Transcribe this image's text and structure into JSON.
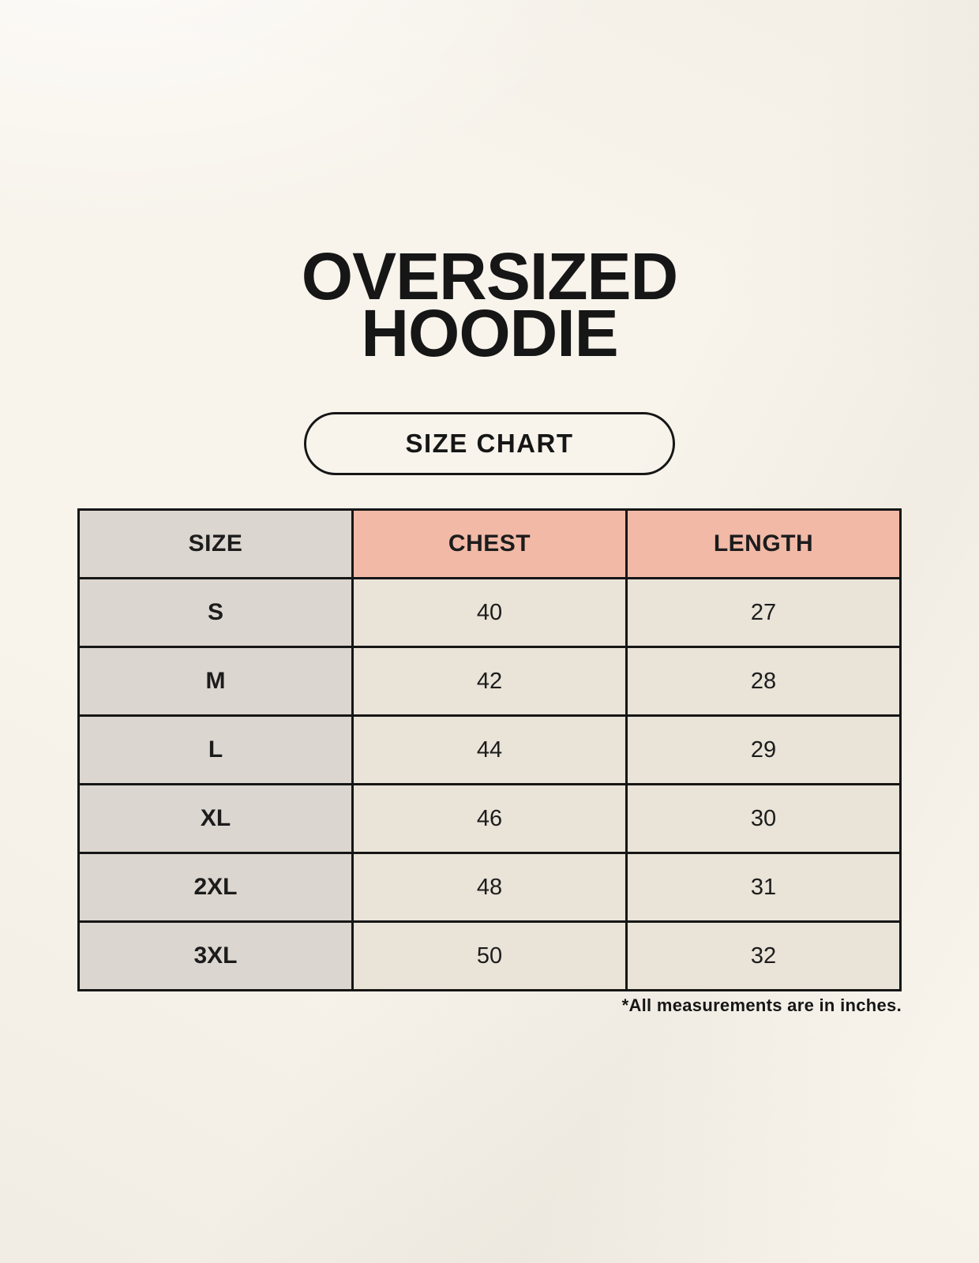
{
  "header": {
    "title_line1": "OVERSIZED",
    "title_line2": "HOODIE",
    "badge_label": "SIZE CHART"
  },
  "chart_data": {
    "type": "table",
    "title": "OVERSIZED HOODIE",
    "subtitle": "SIZE CHART",
    "columns": [
      "SIZE",
      "CHEST",
      "LENGTH"
    ],
    "rows": [
      [
        "S",
        "40",
        "27"
      ],
      [
        "M",
        "42",
        "28"
      ],
      [
        "L",
        "44",
        "29"
      ],
      [
        "XL",
        "46",
        "30"
      ],
      [
        "2XL",
        "48",
        "31"
      ],
      [
        "3XL",
        "50",
        "32"
      ]
    ],
    "units_note": "*All measurements are in inches."
  },
  "footnote": "*All measurements are in inches.",
  "colors": {
    "background": "#f8f4ec",
    "accent_pink": "#f2b9a7",
    "neutral_gray": "#dcd6d0",
    "cell_cream": "#e9e3d8",
    "border": "#161616",
    "text": "#1c1c1c"
  }
}
